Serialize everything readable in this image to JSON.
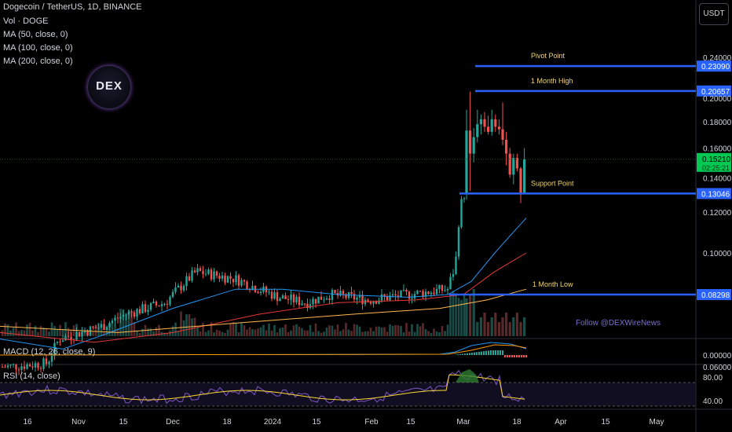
{
  "header": {
    "title": "Dogecoin / TetherUS, 1D, BINANCE",
    "indicators": [
      "Vol · DOGE",
      "MA (50, close, 0)",
      "MA (100, close, 0)",
      "MA (200, close, 0)"
    ]
  },
  "unit_button": "USDT",
  "logo_text": "DEX",
  "watermark": "Follow @DEXWireNews",
  "colors": {
    "up": "#26a69a",
    "down": "#ef5350",
    "level": "#2962ff",
    "label": "#f5d76e",
    "ma50": "#2196f3",
    "ma100": "#e53935",
    "ma200": "#ffb74d",
    "price": "#00c853",
    "rsi": "#7e57c2"
  },
  "chart_data": [
    {
      "type": "candlestick",
      "x_axis": {
        "tick_labels": [
          "16",
          "Nov",
          "15",
          "Dec",
          "18",
          "2024",
          "15",
          "Feb",
          "15",
          "Mar",
          "18",
          "Apr",
          "15",
          "May"
        ]
      },
      "y_axis": {
        "scale": "log",
        "tick_labels": [
          "0.24000",
          "0.20000",
          "0.18000",
          "0.16000",
          "0.14000",
          "0.12000",
          "0.10000",
          "0.06000"
        ],
        "tick_values": [
          0.24,
          0.2,
          0.18,
          0.16,
          0.14,
          0.12,
          0.1,
          0.06
        ]
      },
      "grid": false,
      "levels": [
        {
          "name": "Pivot Point",
          "value": 0.2309,
          "label": "0.23090"
        },
        {
          "name": "1 Month High",
          "value": 0.20657,
          "label": "0.20657"
        },
        {
          "name": "Support Point",
          "value": 0.13046,
          "label": "0.13046"
        },
        {
          "name": "1 Month Low",
          "value": 0.08298,
          "label": "0.08298"
        }
      ],
      "current_price": {
        "value": 0.1521,
        "label": "0.15210",
        "countdown": "02:25:21"
      },
      "candles": [
        {
          "c": "2024-03-04",
          "o": 0.13,
          "h": 0.19,
          "l": 0.127,
          "cl": 0.173
        },
        {
          "c": "2024-03-05",
          "o": 0.173,
          "h": 0.206,
          "l": 0.132,
          "cl": 0.156
        },
        {
          "c": "2024-03-06",
          "o": 0.156,
          "h": 0.175,
          "l": 0.15,
          "cl": 0.168
        },
        {
          "c": "2024-03-07",
          "o": 0.168,
          "h": 0.19,
          "l": 0.164,
          "cl": 0.178
        },
        {
          "c": "2024-03-08",
          "o": 0.178,
          "h": 0.186,
          "l": 0.17,
          "cl": 0.182
        },
        {
          "c": "2024-03-09",
          "o": 0.182,
          "h": 0.188,
          "l": 0.172,
          "cl": 0.176
        },
        {
          "c": "2024-03-10",
          "o": 0.176,
          "h": 0.185,
          "l": 0.17,
          "cl": 0.172
        },
        {
          "c": "2024-03-11",
          "o": 0.172,
          "h": 0.19,
          "l": 0.169,
          "cl": 0.182
        },
        {
          "c": "2024-03-12",
          "o": 0.182,
          "h": 0.186,
          "l": 0.172,
          "cl": 0.176
        },
        {
          "c": "2024-03-13",
          "o": 0.176,
          "h": 0.182,
          "l": 0.17,
          "cl": 0.174
        },
        {
          "c": "2024-03-14",
          "o": 0.174,
          "h": 0.196,
          "l": 0.162,
          "cl": 0.166
        },
        {
          "c": "2024-03-15",
          "o": 0.166,
          "h": 0.172,
          "l": 0.148,
          "cl": 0.156
        },
        {
          "c": "2024-03-16",
          "o": 0.156,
          "h": 0.16,
          "l": 0.14,
          "cl": 0.142
        },
        {
          "c": "2024-03-17",
          "o": 0.142,
          "h": 0.156,
          "l": 0.136,
          "cl": 0.153
        },
        {
          "c": "2024-03-18",
          "o": 0.153,
          "h": 0.156,
          "l": 0.144,
          "cl": 0.146
        },
        {
          "c": "2024-03-19",
          "o": 0.146,
          "h": 0.147,
          "l": 0.125,
          "cl": 0.131
        },
        {
          "c": "2024-03-20",
          "o": 0.131,
          "h": 0.16,
          "l": 0.13,
          "cl": 0.1521
        }
      ],
      "annotations": [
        "Pivot Point",
        "1 Month High",
        "Support Point",
        "1 Month Low"
      ]
    },
    {
      "type": "line",
      "title": "MACD (12, 26, close, 9)",
      "y_axis": {
        "tick_labels": [
          "0.00000"
        ]
      }
    },
    {
      "type": "line",
      "title": "RSI (14, close)",
      "y_axis": {
        "tick_labels": [
          "80.00",
          "40.00"
        ]
      }
    }
  ],
  "pane_titles": {
    "macd": "MACD (12, 26, close, 9)",
    "rsi": "RSI (14, close)"
  }
}
